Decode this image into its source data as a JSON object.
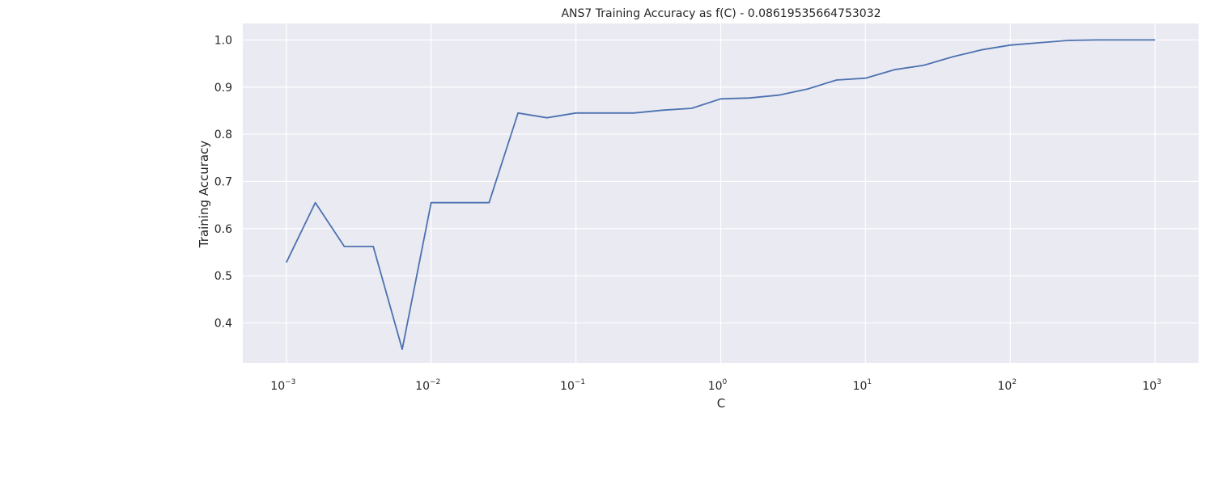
{
  "chart_data": {
    "type": "line",
    "title": "ANS7 Training Accuracy as f(C) - 0.08619535664753032",
    "xlabel": "C",
    "ylabel": "Training Accuracy",
    "xscale": "log",
    "xlim": [
      0.0005,
      2000
    ],
    "ylim": [
      0.315,
      1.035
    ],
    "grid": true,
    "background_color": "#eaeaf2",
    "grid_color": "#ffffff",
    "line_color": "#4c72b0",
    "x_ticks": [
      {
        "base": "10",
        "exp": "−3",
        "value": 0.001
      },
      {
        "base": "10",
        "exp": "−2",
        "value": 0.01
      },
      {
        "base": "10",
        "exp": "−1",
        "value": 0.1
      },
      {
        "base": "10",
        "exp": "0",
        "value": 1
      },
      {
        "base": "10",
        "exp": "1",
        "value": 10
      },
      {
        "base": "10",
        "exp": "2",
        "value": 100
      },
      {
        "base": "10",
        "exp": "3",
        "value": 1000
      }
    ],
    "y_ticks": [
      {
        "label": "0.4",
        "value": 0.4
      },
      {
        "label": "0.5",
        "value": 0.5
      },
      {
        "label": "0.6",
        "value": 0.6
      },
      {
        "label": "0.7",
        "value": 0.7
      },
      {
        "label": "0.8",
        "value": 0.8
      },
      {
        "label": "0.9",
        "value": 0.9
      },
      {
        "label": "1.0",
        "value": 1.0
      }
    ],
    "series": [
      {
        "x": [
          0.001,
          0.001585,
          0.002512,
          0.003981,
          0.00631,
          0.01,
          0.01585,
          0.02512,
          0.03981,
          0.0631,
          0.1,
          0.1585,
          0.2512,
          0.3981,
          0.631,
          1.0,
          1.585,
          2.512,
          3.981,
          6.31,
          10,
          15.85,
          25.12,
          39.81,
          63.1,
          100,
          158.5,
          251.2,
          398.1,
          631,
          1000
        ],
        "y": [
          0.528,
          0.655,
          0.562,
          0.562,
          0.344,
          0.655,
          0.655,
          0.655,
          0.845,
          0.835,
          0.845,
          0.845,
          0.845,
          0.851,
          0.855,
          0.875,
          0.877,
          0.883,
          0.896,
          0.915,
          0.919,
          0.937,
          0.946,
          0.964,
          0.979,
          0.989,
          0.994,
          0.999,
          1.0,
          1.0,
          1.0
        ]
      }
    ]
  }
}
